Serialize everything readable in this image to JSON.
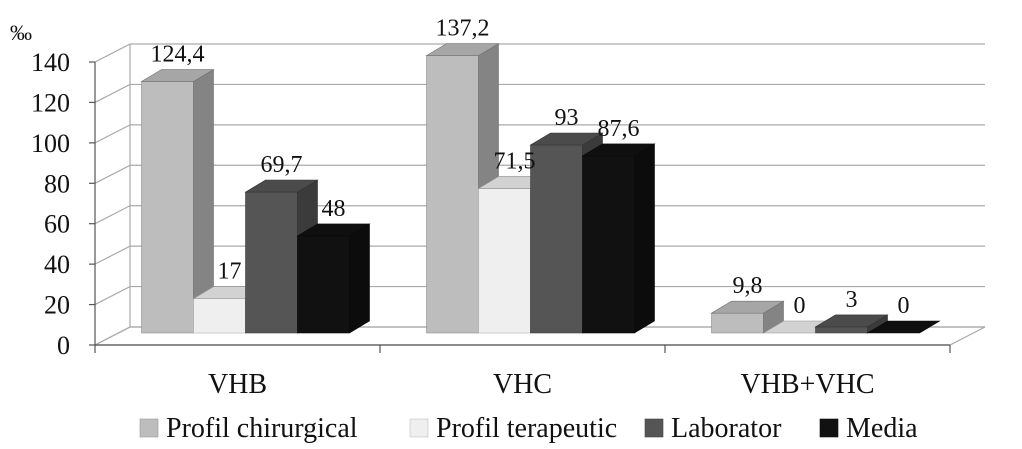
{
  "chart_data": {
    "type": "bar",
    "style": "3d-clustered-column",
    "unit_label": "‰",
    "categories": [
      "VHB",
      "VHC",
      "VHB+VHC"
    ],
    "series": [
      {
        "name": "Profil chirurgical",
        "values": [
          124.4,
          137.2,
          9.8
        ],
        "labels": [
          "124,4",
          "137,2",
          "9,8"
        ],
        "color": "#bdbdbd"
      },
      {
        "name": "Profil terapeutic",
        "values": [
          17,
          71.5,
          0
        ],
        "labels": [
          "17",
          "71,5",
          "0"
        ],
        "color": "#efefef"
      },
      {
        "name": "Laborator",
        "values": [
          69.7,
          93,
          3
        ],
        "labels": [
          "69,7",
          "93",
          "3"
        ],
        "color": "#555555"
      },
      {
        "name": "Media",
        "values": [
          48,
          87.6,
          0
        ],
        "labels": [
          "48",
          "87,6",
          "0"
        ],
        "color": "#111111"
      }
    ],
    "ylim": [
      0,
      140
    ],
    "yticks": [
      0,
      20,
      40,
      60,
      80,
      100,
      120,
      140
    ],
    "grid": true,
    "legend_position": "bottom"
  }
}
